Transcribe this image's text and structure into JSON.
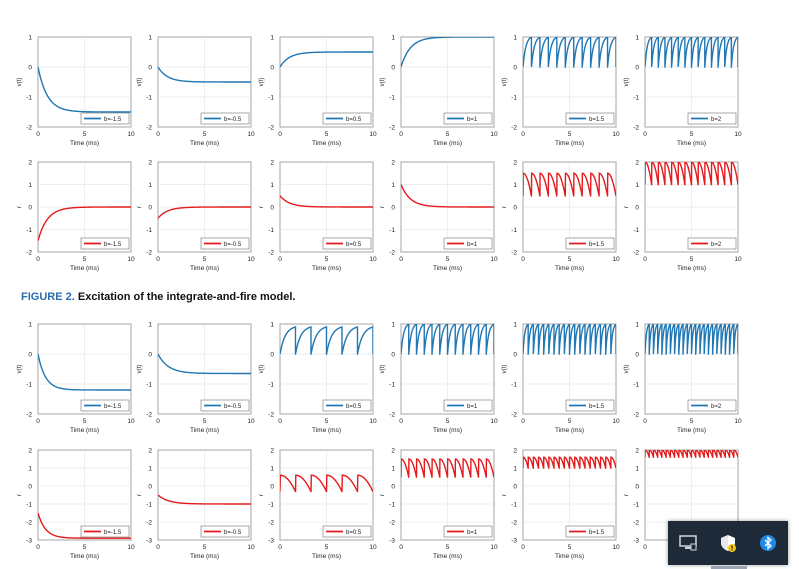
{
  "caption": {
    "label": "FIGURE 2.",
    "text": "Excitation of the integrate-and-fire model."
  },
  "colors": {
    "v_line": "#1f77b4",
    "r_line": "#e41a1c",
    "axis": "#333333",
    "grid": "#dddddd"
  },
  "tray": {
    "icons": [
      "monitor-icon",
      "shield-warning-icon",
      "bluetooth-icon"
    ]
  },
  "chart_data": [
    {
      "type": "line",
      "figure": "top",
      "row": "v(t)",
      "ylabel": "v(t)",
      "xlabel": "Time (ms)",
      "xlim": [
        0,
        10
      ],
      "ylim": [
        -2,
        1
      ],
      "xticks": [
        "0",
        "5",
        "10"
      ],
      "yticks": [
        "-2",
        "-1",
        "0",
        "1"
      ],
      "grid": true,
      "legend_placement": "bottom-right",
      "series": [
        {
          "name": "b=-1.5",
          "kind": "decay",
          "v0": 0.0,
          "target": -1.5,
          "tau": 1.0
        },
        {
          "name": "b=-0.5",
          "kind": "decay",
          "v0": 0.0,
          "target": -0.5,
          "tau": 1.0
        },
        {
          "name": "b=0.5",
          "kind": "decay",
          "v0": 0.0,
          "target": 0.5,
          "tau": 1.0
        },
        {
          "name": "b=1",
          "kind": "decay",
          "v0": 0.0,
          "target": 1.0,
          "tau": 1.0
        },
        {
          "name": "b=1.5",
          "kind": "saw",
          "low": 0.0,
          "high": 1.0,
          "n": 11
        },
        {
          "name": "b=2",
          "kind": "saw",
          "low": 0.0,
          "high": 1.0,
          "n": 14
        }
      ]
    },
    {
      "type": "line",
      "figure": "top",
      "row": "r",
      "ylabel": "r",
      "xlabel": "Time (ms)",
      "xlim": [
        0,
        10
      ],
      "ylim": [
        -2,
        2
      ],
      "xticks": [
        "0",
        "5",
        "10"
      ],
      "yticks": [
        "-2",
        "-1",
        "0",
        "1",
        "2"
      ],
      "grid": true,
      "legend_placement": "bottom-right",
      "series": [
        {
          "name": "b=-1.5",
          "kind": "decay",
          "v0": -1.5,
          "target": 0.0,
          "tau": 1.0
        },
        {
          "name": "b=-0.5",
          "kind": "decay",
          "v0": -0.5,
          "target": 0.0,
          "tau": 1.0
        },
        {
          "name": "b=0.5",
          "kind": "decay",
          "v0": 0.5,
          "target": 0.0,
          "tau": 1.0
        },
        {
          "name": "b=1",
          "kind": "decay",
          "v0": 1.0,
          "target": 0.0,
          "tau": 1.0
        },
        {
          "name": "b=1.5",
          "kind": "rsaw",
          "low": 0.5,
          "high": 1.5,
          "n": 11
        },
        {
          "name": "b=2",
          "kind": "rsaw",
          "low": 1.0,
          "high": 2.0,
          "n": 14
        }
      ]
    },
    {
      "type": "line",
      "figure": "bottom",
      "row": "v(t)",
      "ylabel": "v(t)",
      "xlabel": "Time (ms)",
      "xlim": [
        0,
        10
      ],
      "ylim": [
        -2,
        1
      ],
      "xticks": [
        "0",
        "5",
        "10"
      ],
      "yticks": [
        "-2",
        "-1",
        "0",
        "1"
      ],
      "grid": true,
      "legend_placement": "bottom-right",
      "series": [
        {
          "name": "b=-1.5",
          "kind": "decay",
          "v0": 0.0,
          "target": -1.2,
          "tau": 0.8
        },
        {
          "name": "b=-0.5",
          "kind": "decay",
          "v0": 0.0,
          "target": -0.65,
          "tau": 1.1
        },
        {
          "name": "b=0.5",
          "kind": "saw",
          "low": 0.0,
          "high": 0.9,
          "n": 6
        },
        {
          "name": "b=1",
          "kind": "saw",
          "low": 0.0,
          "high": 1.0,
          "n": 12
        },
        {
          "name": "b=1.5",
          "kind": "saw",
          "low": 0.0,
          "high": 1.0,
          "n": 18
        },
        {
          "name": "b=2",
          "kind": "saw",
          "low": 0.0,
          "high": 1.0,
          "n": 22
        }
      ]
    },
    {
      "type": "line",
      "figure": "bottom",
      "row": "r",
      "ylabel": "r",
      "xlabel": "Time (ms)",
      "xlim": [
        0,
        10
      ],
      "ylim": [
        -3,
        2
      ],
      "xticks": [
        "0",
        "5",
        "10"
      ],
      "yticks": [
        "-3",
        "-2",
        "-1",
        "0",
        "1",
        "2"
      ],
      "grid": true,
      "legend_placement": "bottom-right",
      "series": [
        {
          "name": "b=-1.5",
          "kind": "decay",
          "v0": -1.5,
          "target": -2.9,
          "tau": 0.8
        },
        {
          "name": "b=-0.5",
          "kind": "decay",
          "v0": -0.5,
          "target": -1.0,
          "tau": 1.1
        },
        {
          "name": "b=0.5",
          "kind": "rsaw",
          "low": -0.3,
          "high": 0.6,
          "n": 6
        },
        {
          "name": "b=1",
          "kind": "rsaw",
          "low": 0.5,
          "high": 1.5,
          "n": 12
        },
        {
          "name": "b=1.5",
          "kind": "rsaw",
          "low": 1.0,
          "high": 1.6,
          "n": 18
        },
        {
          "name": "b=2",
          "kind": "rsaw",
          "low": 1.6,
          "high": 2.0,
          "n": 22
        }
      ]
    }
  ]
}
